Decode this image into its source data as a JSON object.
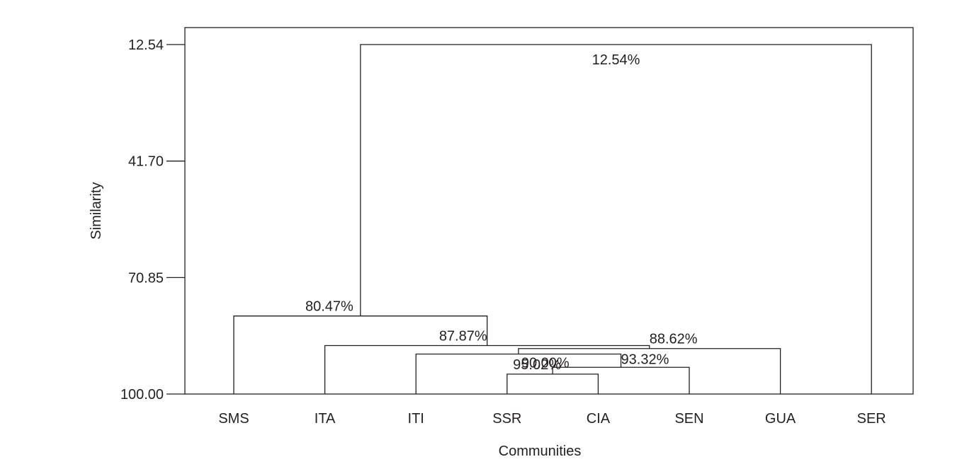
{
  "chart_data": {
    "type": "dendrogram",
    "xlabel": "Communities",
    "ylabel": "Similarity",
    "ylim": [
      12.54,
      100.0
    ],
    "y_axis_inverted": true,
    "y_ticks": [
      "12.54",
      "41.70",
      "70.85",
      "100.00"
    ],
    "y_tick_values": [
      12.54,
      41.7,
      70.85,
      100.0
    ],
    "leaves": [
      "SMS",
      "ITA",
      "ITI",
      "SSR",
      "CIA",
      "SEN",
      "GUA",
      "SER"
    ],
    "merges": [
      {
        "id": "m1",
        "left": "SSR",
        "right": "CIA",
        "similarity": 95.02,
        "label": "95.02%"
      },
      {
        "id": "m2",
        "left": "m1",
        "right": "SEN",
        "similarity": 93.32,
        "label": "93.32%"
      },
      {
        "id": "m3",
        "left": "ITI",
        "right": "m2",
        "similarity": 90.0,
        "label": "90.00%"
      },
      {
        "id": "m4",
        "left": "m3",
        "right": "GUA",
        "similarity": 88.62,
        "label": "88.62%"
      },
      {
        "id": "m5",
        "left": "ITA",
        "right": "m4",
        "similarity": 87.87,
        "label": "87.87%"
      },
      {
        "id": "m6",
        "left": "SMS",
        "right": "m5",
        "similarity": 80.47,
        "label": "80.47%"
      },
      {
        "id": "m7",
        "left": "m6",
        "right": "SER",
        "similarity": 12.54,
        "label": "12.54%"
      }
    ],
    "grid": false,
    "legend": "none"
  },
  "colors": {
    "ink": "#231f20",
    "background": "#ffffff"
  }
}
